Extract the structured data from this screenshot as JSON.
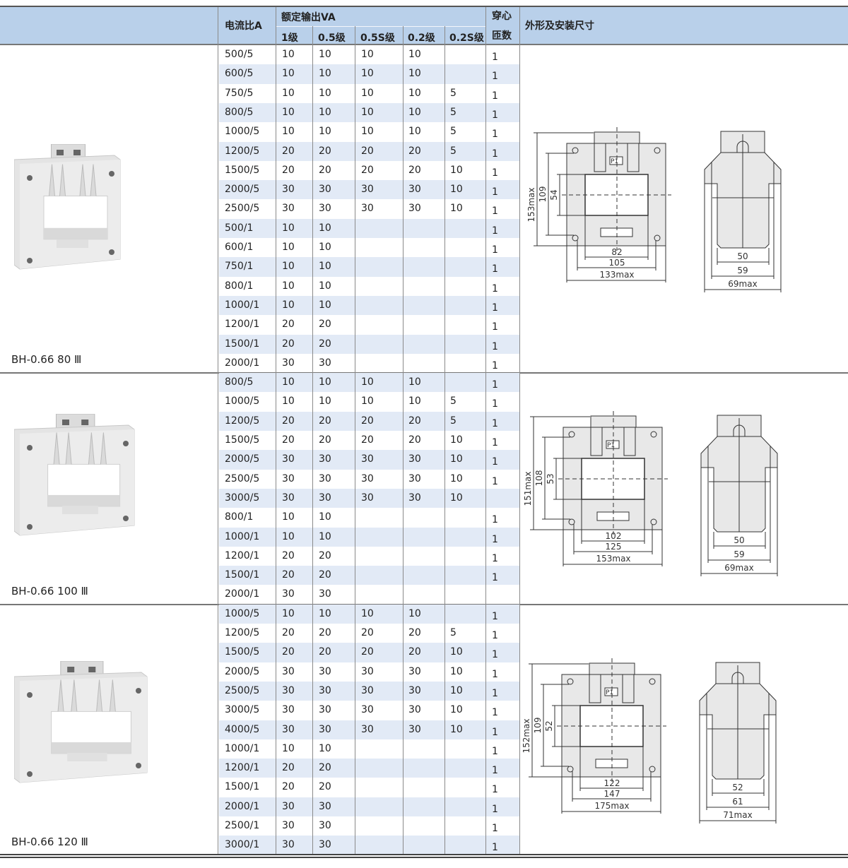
{
  "header": {
    "ratio": "电流比A",
    "rated_output": "额定输出VA",
    "classes": [
      "1级",
      "0.5级",
      "0.5S级",
      "0.2级",
      "0.2S级"
    ],
    "turns_line1": "穿心",
    "turns_line2": "匝数",
    "dimensions": "外形及安装尺寸"
  },
  "colors": {
    "header_bg": "#b9d0ea",
    "stripe_bg": "#e2eaf6"
  },
  "sections": [
    {
      "model": "BH-0.66 80 Ⅲ",
      "rows": [
        [
          "500/5",
          "10",
          "10",
          "10",
          "10",
          "",
          "1"
        ],
        [
          "600/5",
          "10",
          "10",
          "10",
          "10",
          "",
          "1"
        ],
        [
          "750/5",
          "10",
          "10",
          "10",
          "10",
          "5",
          "1"
        ],
        [
          "800/5",
          "10",
          "10",
          "10",
          "10",
          "5",
          "1"
        ],
        [
          "1000/5",
          "10",
          "10",
          "10",
          "10",
          "5",
          "1"
        ],
        [
          "1200/5",
          "20",
          "20",
          "20",
          "20",
          "5",
          "1"
        ],
        [
          "1500/5",
          "20",
          "20",
          "20",
          "20",
          "10",
          "1"
        ],
        [
          "2000/5",
          "30",
          "30",
          "30",
          "30",
          "10",
          "1"
        ],
        [
          "2500/5",
          "30",
          "30",
          "30",
          "30",
          "10",
          "1"
        ],
        [
          "500/1",
          "10",
          "10",
          "",
          "",
          "",
          "1"
        ],
        [
          "600/1",
          "10",
          "10",
          "",
          "",
          "",
          "1"
        ],
        [
          "750/1",
          "10",
          "10",
          "",
          "",
          "",
          "1"
        ],
        [
          "800/1",
          "10",
          "10",
          "",
          "",
          "",
          "1"
        ],
        [
          "1000/1",
          "10",
          "10",
          "",
          "",
          "",
          "1"
        ],
        [
          "1200/1",
          "20",
          "20",
          "",
          "",
          "",
          "1"
        ],
        [
          "1500/1",
          "20",
          "20",
          "",
          "",
          "",
          "1"
        ],
        [
          "2000/1",
          "30",
          "30",
          "",
          "",
          "",
          "1"
        ]
      ],
      "drawing": {
        "height_max": "153max",
        "h_outer": "109",
        "h_window": "54",
        "w_window": "82",
        "w_mount": "105",
        "width_max": "133max",
        "terminal": "P1",
        "side_inner": "50",
        "side_mid": "59",
        "depth_max": "69max"
      }
    },
    {
      "model": "BH-0.66 100 Ⅲ",
      "rows": [
        [
          "800/5",
          "10",
          "10",
          "10",
          "10",
          "",
          "1"
        ],
        [
          "1000/5",
          "10",
          "10",
          "10",
          "10",
          "5",
          "1"
        ],
        [
          "1200/5",
          "20",
          "20",
          "20",
          "20",
          "5",
          "1"
        ],
        [
          "1500/5",
          "20",
          "20",
          "20",
          "20",
          "10",
          "1"
        ],
        [
          "2000/5",
          "30",
          "30",
          "30",
          "30",
          "10",
          "1"
        ],
        [
          "2500/5",
          "30",
          "30",
          "30",
          "30",
          "10",
          "1"
        ],
        [
          "3000/5",
          "30",
          "30",
          "30",
          "30",
          "10",
          ""
        ],
        [
          "800/1",
          "10",
          "10",
          "",
          "",
          "",
          "1"
        ],
        [
          "1000/1",
          "10",
          "10",
          "",
          "",
          "",
          "1"
        ],
        [
          "1200/1",
          "20",
          "20",
          "",
          "",
          "",
          "1"
        ],
        [
          "1500/1",
          "20",
          "20",
          "",
          "",
          "",
          "1"
        ],
        [
          "2000/1",
          "30",
          "30",
          "",
          "",
          "",
          ""
        ]
      ],
      "drawing": {
        "height_max": "151max",
        "h_outer": "108",
        "h_window": "53",
        "w_window": "102",
        "w_mount": "125",
        "width_max": "153max",
        "terminal": "P1",
        "side_inner": "50",
        "side_mid": "59",
        "depth_max": "69max"
      }
    },
    {
      "model": "BH-0.66 120 Ⅲ",
      "rows": [
        [
          "1000/5",
          "10",
          "10",
          "10",
          "10",
          "",
          "1"
        ],
        [
          "1200/5",
          "20",
          "20",
          "20",
          "20",
          "5",
          "1"
        ],
        [
          "1500/5",
          "20",
          "20",
          "20",
          "20",
          "10",
          "1"
        ],
        [
          "2000/5",
          "30",
          "30",
          "30",
          "30",
          "10",
          "1"
        ],
        [
          "2500/5",
          "30",
          "30",
          "30",
          "30",
          "10",
          "1"
        ],
        [
          "3000/5",
          "30",
          "30",
          "30",
          "30",
          "10",
          "1"
        ],
        [
          "4000/5",
          "30",
          "30",
          "30",
          "30",
          "10",
          "1"
        ],
        [
          "1000/1",
          "10",
          "10",
          "",
          "",
          "",
          "1"
        ],
        [
          "1200/1",
          "20",
          "20",
          "",
          "",
          "",
          "1"
        ],
        [
          "1500/1",
          "20",
          "20",
          "",
          "",
          "",
          "1"
        ],
        [
          "2000/1",
          "30",
          "30",
          "",
          "",
          "",
          "1"
        ],
        [
          "2500/1",
          "30",
          "30",
          "",
          "",
          "",
          "1"
        ],
        [
          "3000/1",
          "30",
          "30",
          "",
          "",
          "",
          "1"
        ]
      ],
      "drawing": {
        "height_max": "152max",
        "h_outer": "109",
        "h_window": "52",
        "w_window": "122",
        "w_mount": "147",
        "width_max": "175max",
        "terminal": "P1",
        "side_inner": "52",
        "side_mid": "61",
        "depth_max": "71max"
      }
    }
  ]
}
